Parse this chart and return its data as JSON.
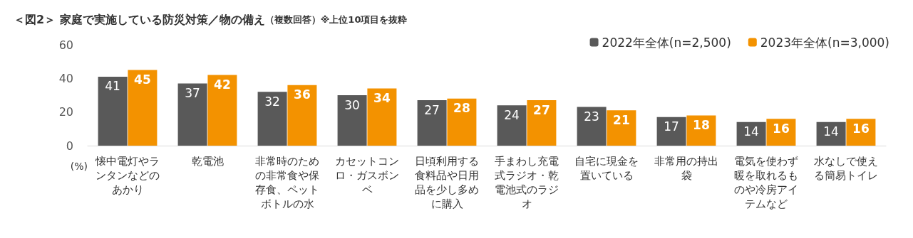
{
  "chart_data": {
    "type": "bar",
    "title": "＜図2＞ 家庭で実施している防災対策／物の備え",
    "subtitle": "（複数回答）※上位10項目を抜粋",
    "ylabel": "(%)",
    "categories": [
      "懐中電灯やランタンなどのあかり",
      "乾電池",
      "非常時のための非常食や保存食、ペットボトルの水",
      "カセットコンロ・ガスボンベ",
      "日頃利用する食料品や日用品を少し多めに購入",
      "手まわし充電式ラジオ・乾電池式のラジオ",
      "自宅に現金を置いている",
      "非常用の持出袋",
      "電気を使わず暖を取れるものや冷房アイテムなど",
      "水なしで使える簡易トイレ"
    ],
    "series": [
      {
        "name": "2022年全体(n=2,500)",
        "color": "#595959",
        "values": [
          41,
          37,
          32,
          30,
          27,
          24,
          23,
          17,
          14,
          14
        ]
      },
      {
        "name": "2023年全体(n=3,000)",
        "color": "#f39200",
        "values": [
          45,
          42,
          36,
          34,
          28,
          27,
          21,
          18,
          16,
          16
        ]
      }
    ],
    "ylim": [
      0,
      60
    ],
    "yticks": [
      0,
      20,
      40,
      60
    ],
    "grid": false,
    "legend": "top right",
    "data_labels": true
  }
}
